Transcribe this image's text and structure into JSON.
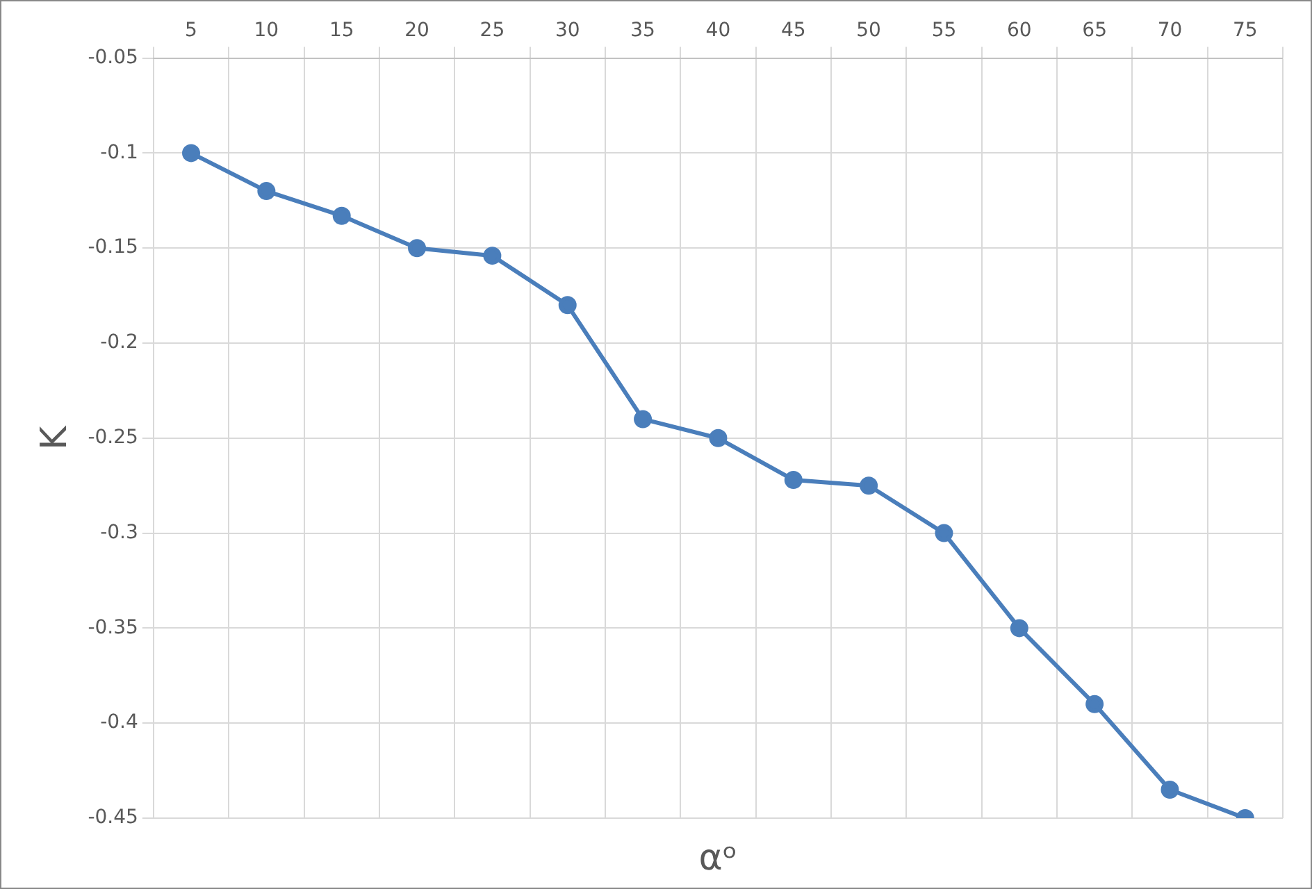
{
  "chart_data": {
    "type": "line",
    "xlabel": "αᵒ",
    "ylabel": "K",
    "categories": [
      "5",
      "10",
      "15",
      "20",
      "25",
      "30",
      "35",
      "40",
      "45",
      "50",
      "55",
      "60",
      "65",
      "70",
      "75"
    ],
    "series": [
      {
        "color": "#4a7ebb",
        "values": [
          -0.1,
          -0.12,
          -0.133,
          -0.15,
          -0.154,
          -0.18,
          -0.24,
          -0.25,
          -0.272,
          -0.275,
          -0.3,
          -0.35,
          -0.39,
          -0.435,
          -0.45
        ]
      }
    ],
    "ylim": [
      -0.45,
      -0.05
    ],
    "yticks": [
      -0.45,
      -0.4,
      -0.35,
      -0.3,
      -0.25,
      -0.2,
      -0.15,
      -0.1,
      -0.05
    ],
    "grid": true,
    "marker": "circle",
    "line_style": "solid",
    "legend": false
  }
}
